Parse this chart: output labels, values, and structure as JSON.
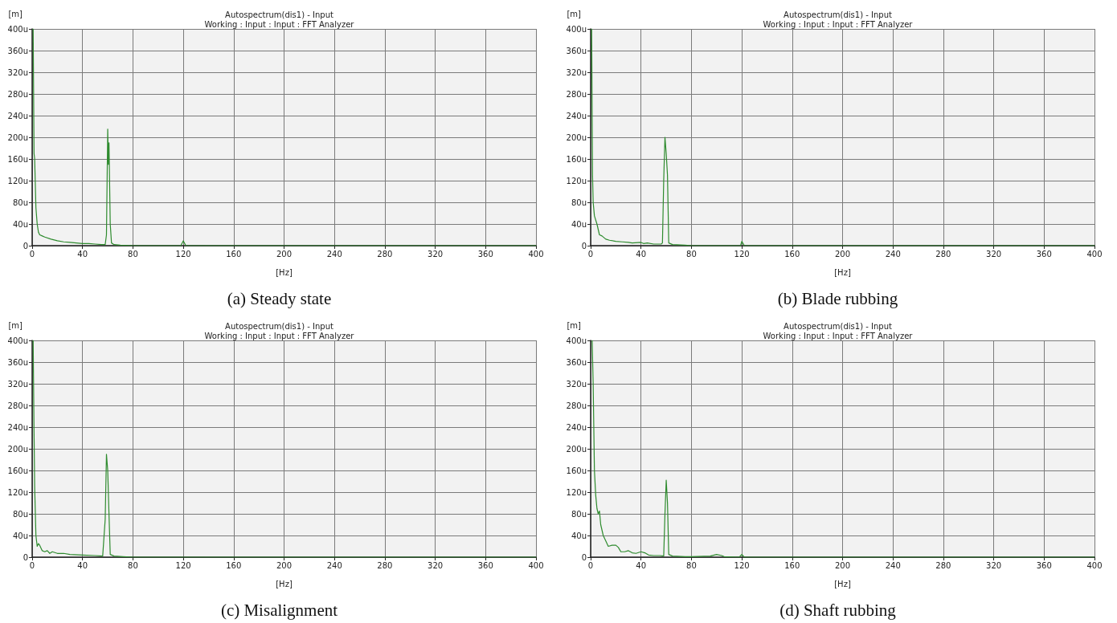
{
  "chart_data": [
    {
      "type": "line",
      "title": "Autospectrum(dis1) - Input",
      "subtitle": "Working : Input : Input : FFT Analyzer",
      "xlabel": "[Hz]",
      "ylabel": "[m]",
      "annotations": [
        "(a) Steady state"
      ],
      "grid": true,
      "marker": "none",
      "line_style": "solid",
      "xlim": [
        0,
        400
      ],
      "xticks": [
        0,
        40,
        80,
        120,
        160,
        200,
        240,
        280,
        320,
        360,
        400
      ],
      "ylim": [
        0,
        400
      ],
      "yticks": [
        {
          "value": 0,
          "label": "0"
        },
        {
          "value": 40,
          "label": "40u"
        },
        {
          "value": 80,
          "label": "80u"
        },
        {
          "value": 120,
          "label": "120u"
        },
        {
          "value": 160,
          "label": "160u"
        },
        {
          "value": 200,
          "label": "200u"
        },
        {
          "value": 240,
          "label": "240u"
        },
        {
          "value": 280,
          "label": "280u"
        },
        {
          "value": 320,
          "label": "320u"
        },
        {
          "value": 360,
          "label": "360u"
        },
        {
          "value": 400,
          "label": "400u"
        }
      ],
      "series": [
        {
          "color": "#2e8b2e",
          "x": [
            0.8,
            1.5,
            2,
            3,
            4,
            5,
            6,
            8,
            10,
            15,
            20,
            25,
            30,
            35,
            40,
            45,
            50,
            55,
            58,
            59,
            60,
            60.5,
            61,
            62,
            63,
            65,
            70,
            80,
            118,
            120,
            122,
            400
          ],
          "values": [
            400,
            170,
            160,
            70,
            40,
            25,
            20,
            18,
            16,
            12,
            9,
            7,
            6,
            5,
            4,
            4,
            3,
            2,
            2,
            20,
            215,
            150,
            190,
            40,
            5,
            2,
            1,
            0,
            0,
            9,
            0,
            0
          ]
        }
      ]
    },
    {
      "type": "line",
      "title": "Autospectrum(dis1) - Input",
      "subtitle": "Working : Input : Input : FFT Analyzer",
      "xlabel": "[Hz]",
      "ylabel": "[m]",
      "annotations": [
        "(b) Blade rubbing"
      ],
      "grid": true,
      "marker": "none",
      "line_style": "solid",
      "xlim": [
        0,
        400
      ],
      "xticks": [
        0,
        40,
        80,
        120,
        160,
        200,
        240,
        280,
        320,
        360,
        400
      ],
      "ylim": [
        0,
        400
      ],
      "yticks": [
        {
          "value": 0,
          "label": "0"
        },
        {
          "value": 40,
          "label": "40u"
        },
        {
          "value": 80,
          "label": "80u"
        },
        {
          "value": 120,
          "label": "120u"
        },
        {
          "value": 160,
          "label": "160u"
        },
        {
          "value": 200,
          "label": "200u"
        },
        {
          "value": 240,
          "label": "240u"
        },
        {
          "value": 280,
          "label": "280u"
        },
        {
          "value": 320,
          "label": "320u"
        },
        {
          "value": 360,
          "label": "360u"
        },
        {
          "value": 400,
          "label": "400u"
        }
      ],
      "series": [
        {
          "color": "#2e8b2e",
          "x": [
            0.8,
            1.5,
            2,
            3,
            5,
            7,
            9,
            12,
            15,
            20,
            25,
            30,
            33,
            40,
            42,
            45,
            50,
            56,
            57,
            58,
            59,
            60,
            61,
            62,
            65,
            75,
            80,
            119,
            120,
            122,
            400
          ],
          "values": [
            400,
            130,
            80,
            55,
            40,
            20,
            18,
            12,
            10,
            8,
            7,
            6,
            5,
            6,
            4,
            5,
            3,
            3,
            5,
            120,
            200,
            170,
            130,
            5,
            2,
            1,
            0,
            0,
            8,
            0,
            0
          ]
        }
      ]
    },
    {
      "type": "line",
      "title": "Autospectrum(dis1) - Input",
      "subtitle": "Working : Input : Input : FFT Analyzer",
      "xlabel": "[Hz]",
      "ylabel": "[m]",
      "annotations": [
        "(c) Misalignment"
      ],
      "grid": true,
      "marker": "none",
      "line_style": "solid",
      "xlim": [
        0,
        400
      ],
      "xticks": [
        0,
        40,
        80,
        120,
        160,
        200,
        240,
        280,
        320,
        360,
        400
      ],
      "ylim": [
        0,
        400
      ],
      "yticks": [
        {
          "value": 0,
          "label": "0"
        },
        {
          "value": 40,
          "label": "40u"
        },
        {
          "value": 80,
          "label": "80u"
        },
        {
          "value": 120,
          "label": "120u"
        },
        {
          "value": 160,
          "label": "160u"
        },
        {
          "value": 200,
          "label": "200u"
        },
        {
          "value": 240,
          "label": "240u"
        },
        {
          "value": 280,
          "label": "280u"
        },
        {
          "value": 320,
          "label": "320u"
        },
        {
          "value": 360,
          "label": "360u"
        },
        {
          "value": 400,
          "label": "400u"
        }
      ],
      "series": [
        {
          "color": "#2e8b2e",
          "x": [
            0.8,
            1.5,
            2,
            3,
            4,
            5,
            6,
            8,
            10,
            12,
            14,
            16,
            20,
            25,
            30,
            40,
            50,
            56,
            58,
            59,
            60,
            61,
            62,
            65,
            72,
            80,
            400
          ],
          "values": [
            400,
            230,
            130,
            40,
            20,
            25,
            22,
            12,
            10,
            12,
            7,
            10,
            7,
            7,
            5,
            4,
            3,
            2,
            70,
            190,
            160,
            80,
            5,
            2,
            1,
            0,
            0
          ]
        }
      ]
    },
    {
      "type": "line",
      "title": "Autospectrum(dis1) - Input",
      "subtitle": "Working : Input : Input : FFT Analyzer",
      "xlabel": "[Hz]",
      "ylabel": "[m]",
      "annotations": [
        "(d) Shaft rubbing"
      ],
      "grid": true,
      "marker": "none",
      "line_style": "solid",
      "xlim": [
        0,
        400
      ],
      "xticks": [
        0,
        40,
        80,
        120,
        160,
        200,
        240,
        280,
        320,
        360,
        400
      ],
      "ylim": [
        0,
        400
      ],
      "yticks": [
        {
          "value": 0,
          "label": "0"
        },
        {
          "value": 40,
          "label": "40u"
        },
        {
          "value": 80,
          "label": "80u"
        },
        {
          "value": 120,
          "label": "120u"
        },
        {
          "value": 160,
          "label": "160u"
        },
        {
          "value": 200,
          "label": "200u"
        },
        {
          "value": 240,
          "label": "240u"
        },
        {
          "value": 280,
          "label": "280u"
        },
        {
          "value": 320,
          "label": "320u"
        },
        {
          "value": 360,
          "label": "360u"
        },
        {
          "value": 400,
          "label": "400u"
        }
      ],
      "series": [
        {
          "color": "#2e8b2e",
          "x": [
            1.2,
            2,
            3,
            4,
            5,
            6,
            7,
            8,
            10,
            12,
            14,
            17,
            20,
            22,
            24,
            27,
            30,
            33,
            36,
            40,
            43,
            46,
            50,
            55,
            58,
            59,
            60,
            61,
            62,
            65,
            75,
            80,
            95,
            100,
            104,
            106,
            118,
            120,
            122,
            400
          ],
          "values": [
            400,
            320,
            160,
            115,
            90,
            80,
            85,
            60,
            40,
            30,
            20,
            22,
            22,
            18,
            10,
            10,
            12,
            8,
            7,
            10,
            8,
            4,
            3,
            3,
            2,
            80,
            142,
            100,
            5,
            2,
            1,
            1,
            2,
            5,
            3,
            1,
            0,
            5,
            0,
            0
          ]
        }
      ]
    }
  ]
}
